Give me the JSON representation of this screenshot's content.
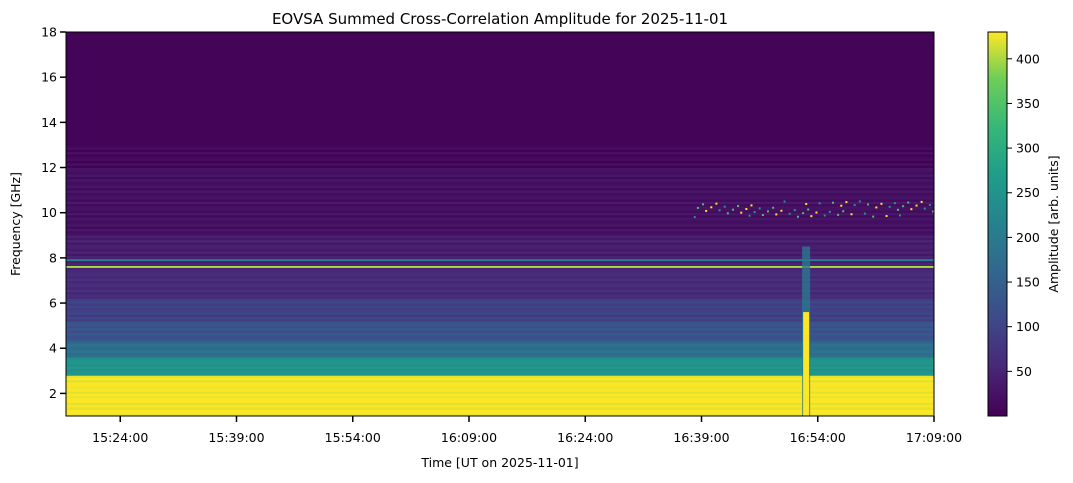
{
  "chart_data": {
    "type": "heatmap",
    "title": "EOVSA Summed Cross-Correlation Amplitude for 2025-11-01",
    "xlabel": "Time [UT on 2025-11-01]",
    "ylabel": "Frequency [GHz]",
    "x_ticks": [
      "15:24:00",
      "15:39:00",
      "15:54:00",
      "16:09:00",
      "16:24:00",
      "16:39:00",
      "16:54:00",
      "17:09:00"
    ],
    "xlim": [
      "15:17:00",
      "17:09:00"
    ],
    "y_ticks": [
      2,
      4,
      6,
      8,
      10,
      12,
      14,
      16,
      18
    ],
    "ylim": [
      1,
      18
    ],
    "colorbar": {
      "label": "Amplitude [arb. units]",
      "colormap": "viridis",
      "range": [
        0,
        430
      ],
      "ticks": [
        50,
        100,
        150,
        200,
        250,
        300,
        350,
        400
      ]
    },
    "features": [
      {
        "feature": "strong low-frequency band",
        "freq_ghz": [
          1,
          2.8
        ],
        "amplitude": 430
      },
      {
        "feature": "moderate band",
        "freq_ghz": [
          2.8,
          3.6
        ],
        "amplitude": 260
      },
      {
        "feature": "RFI line",
        "freq_ghz": 7.6,
        "amplitude": 400
      },
      {
        "feature": "RFI line",
        "freq_ghz": 7.9,
        "amplitude": 200
      },
      {
        "feature": "burst",
        "time": "16:52:30",
        "freq_ghz": [
          1,
          8.5
        ],
        "amplitude": 430
      },
      {
        "feature": "scattered spikes",
        "time_range": [
          "16:38:00",
          "17:09:00"
        ],
        "freq_ghz": 10.2,
        "amplitude": 430
      }
    ]
  }
}
